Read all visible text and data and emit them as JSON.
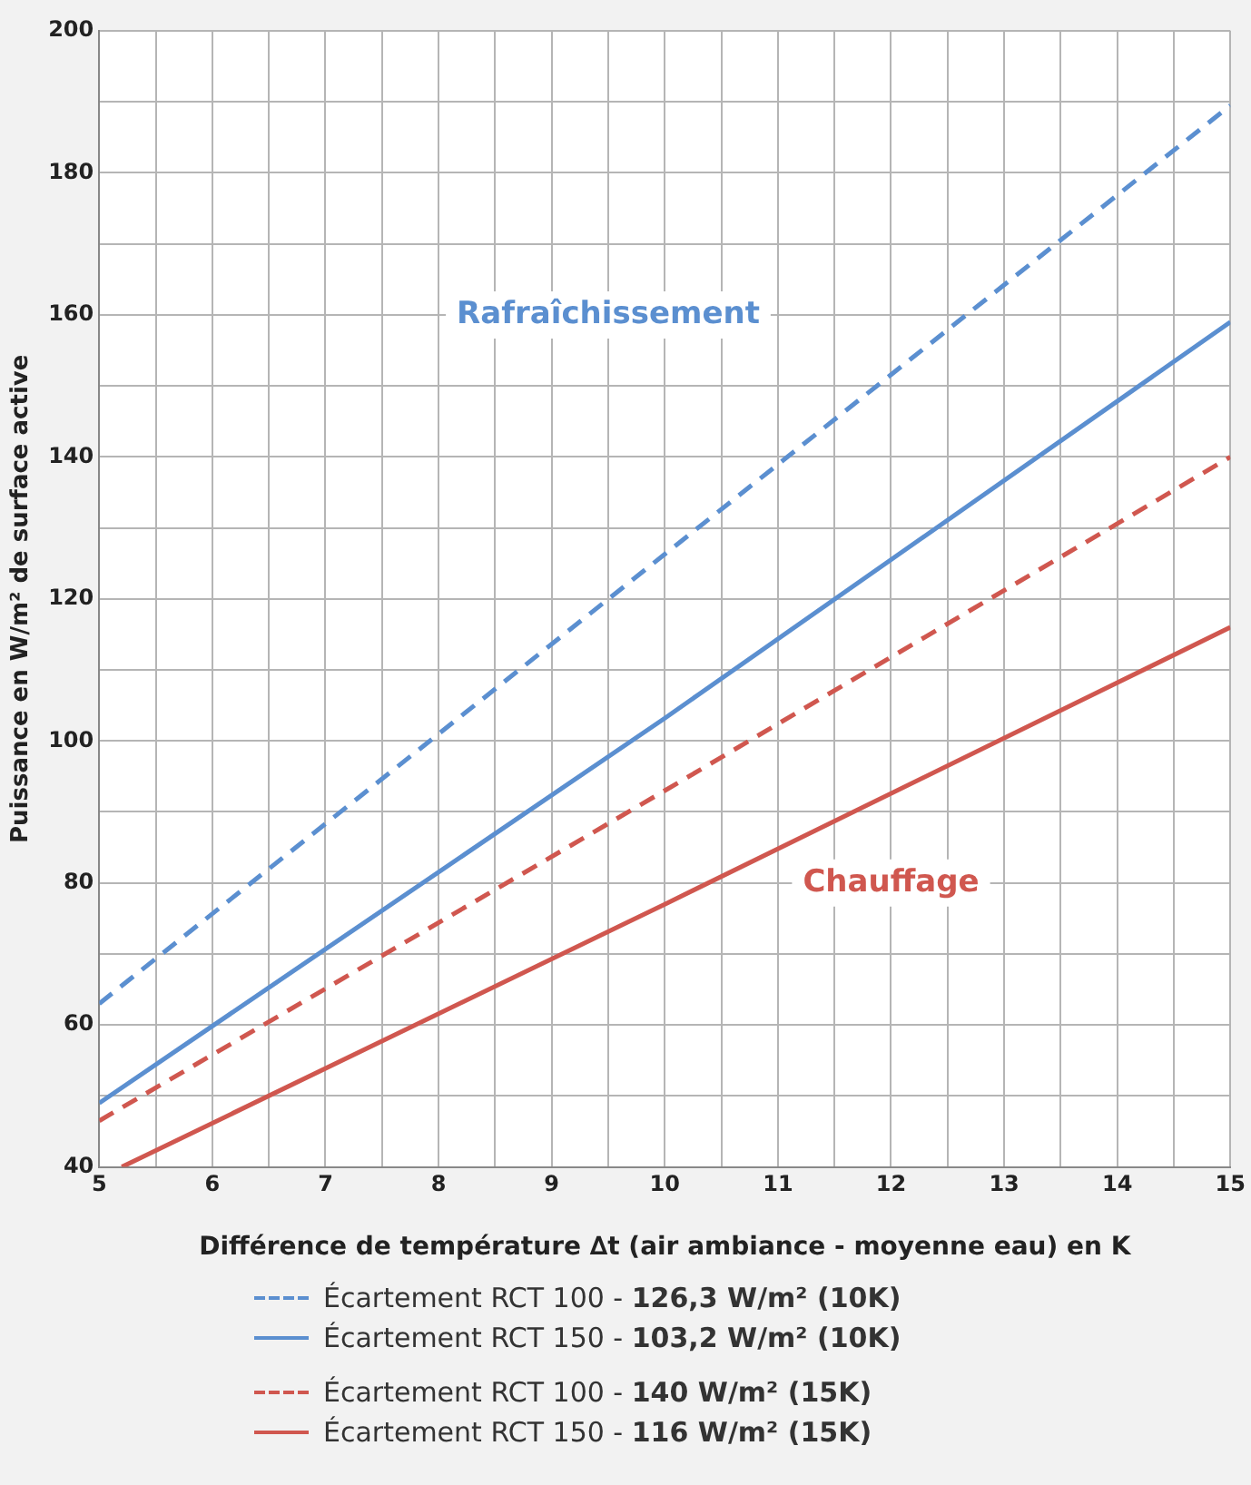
{
  "chart_data": {
    "type": "line",
    "xlabel": "Différence de température ∆t (air ambiance - moyenne eau) en K",
    "ylabel": "Puissance en W/m² de surface active",
    "xlim": [
      5,
      15
    ],
    "ylim": [
      40,
      200
    ],
    "xticks": [
      5,
      {
        "value": 5.5,
        "label": null
      },
      6,
      {
        "value": 6.5,
        "label": null
      },
      7,
      {
        "value": 7.5,
        "label": null
      },
      8,
      {
        "value": 8.5,
        "label": null
      },
      9,
      {
        "value": 9.5,
        "label": null
      },
      10,
      {
        "value": 10.5,
        "label": null
      },
      11,
      {
        "value": 11.5,
        "label": null
      },
      12,
      {
        "value": 12.5,
        "label": null
      },
      13,
      {
        "value": 13.5,
        "label": null
      },
      14,
      {
        "value": 14.5,
        "label": null
      },
      15
    ],
    "yticks": [
      40,
      {
        "value": 50,
        "label": null
      },
      60,
      {
        "value": 70,
        "label": null
      },
      80,
      {
        "value": 90,
        "label": null
      },
      100,
      {
        "value": 110,
        "label": null
      },
      120,
      {
        "value": 130,
        "label": null
      },
      140,
      {
        "value": 150,
        "label": null
      },
      160,
      {
        "value": 170,
        "label": null
      },
      180,
      {
        "value": 190,
        "label": null
      },
      200
    ],
    "grid": true,
    "legend": "bottom",
    "marker": "none",
    "series": [
      {
        "name": "Écartement RCT 100 - 126,3 W/m² (10K)",
        "color": "#5b8fd0",
        "line_style": "dashed",
        "x": [
          5,
          10,
          15
        ],
        "values": [
          63,
          126.3,
          189.5
        ]
      },
      {
        "name": "Écartement RCT 150 - 103,2 W/m² (10K)",
        "color": "#5b8fd0",
        "line_style": "solid",
        "x": [
          5,
          10,
          15
        ],
        "values": [
          49,
          103.2,
          159
        ]
      },
      {
        "name": "Écartement RCT 100 - 140 W/m² (15K)",
        "color": "#d0574f",
        "line_style": "dashed",
        "x": [
          5,
          10,
          15
        ],
        "values": [
          46.5,
          93,
          140
        ]
      },
      {
        "name": "Écartement RCT 150 - 116 W/m² (15K)",
        "color": "#d0574f",
        "line_style": "solid",
        "x": [
          5.2,
          10,
          15
        ],
        "values": [
          40,
          77,
          116
        ]
      }
    ],
    "annotations": [
      "Rafraîchissement",
      "Chauffage"
    ]
  }
}
